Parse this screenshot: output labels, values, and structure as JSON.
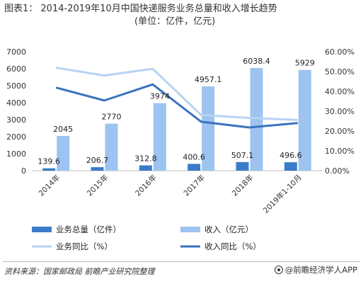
{
  "title": {
    "line1": "图表1： 2014-2019年10月中国快递服务业务总量和收入增长趋势",
    "line2": "(单位：亿件，亿元)"
  },
  "chart_data": {
    "type": "bar",
    "categories": [
      "2014年",
      "2015年",
      "2016年",
      "2017年",
      "2018年",
      "2019年1-10月"
    ],
    "series": [
      {
        "name": "业务总量（亿件）",
        "type": "bar",
        "axis": "left",
        "color": "#3A7CC8",
        "values": [
          139.6,
          206.7,
          312.8,
          400.6,
          507.1,
          496.6
        ],
        "labels": [
          "139.6",
          "206.7",
          "312.8",
          "400.6",
          "507.1",
          "496.6"
        ]
      },
      {
        "name": "收入（亿元）",
        "type": "bar",
        "axis": "left",
        "color": "#9DC3F0",
        "values": [
          2045,
          2770,
          3974,
          4957.1,
          6038.4,
          5929
        ],
        "labels": [
          "2045",
          "2770",
          "3974",
          "4957.1",
          "6038.4",
          "5929"
        ]
      },
      {
        "name": "业务同比（%）",
        "type": "line",
        "axis": "right",
        "color": "#B7D3F3",
        "values": [
          51.9,
          48.0,
          51.4,
          28.1,
          26.6,
          25.6
        ]
      },
      {
        "name": "收入同比（%）",
        "type": "line",
        "axis": "right",
        "color": "#3A72BE",
        "values": [
          41.9,
          35.4,
          43.5,
          24.7,
          21.8,
          24.0
        ]
      }
    ],
    "y_left": {
      "ylim": [
        0,
        7000
      ],
      "ticks": [
        "0",
        "1000",
        "2000",
        "3000",
        "4000",
        "5000",
        "6000",
        "7000"
      ]
    },
    "y_right": {
      "ylim": [
        0,
        60
      ],
      "ticks": [
        "0.00%",
        "10.00%",
        "20.00%",
        "30.00%",
        "40.00%",
        "50.00%",
        "60.00%"
      ]
    },
    "grid": false,
    "legend_position": "bottom"
  },
  "footer": {
    "source": "资料来源：国家邮政局 前瞻产业研究院整理",
    "brand": "@前瞻经济学人APP"
  }
}
